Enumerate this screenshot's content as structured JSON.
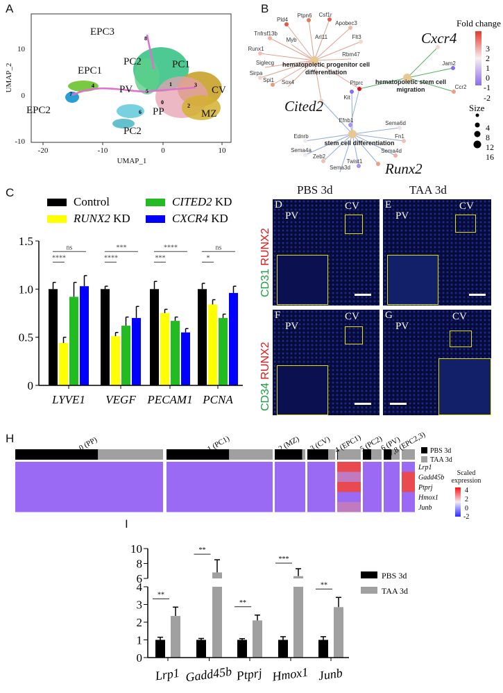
{
  "panels": {
    "A": "A",
    "B": "B",
    "C": "C",
    "D": "D",
    "E": "E",
    "F": "F",
    "G": "G",
    "H": "H",
    "I": "I"
  },
  "umap": {
    "xlabel": "UMAP_1",
    "ylabel": "UMAP_2",
    "xticks": [
      "-20",
      "-10",
      "0",
      "10"
    ],
    "yticks": [
      "10",
      "0",
      "-10"
    ],
    "cluster_labels": [
      "EPC3",
      "PC2",
      "PC1",
      "EPC1",
      "CV",
      "EPC2",
      "PV",
      "PP",
      "MZ",
      "PC2"
    ],
    "cluster_numbers": [
      "8",
      "5",
      "1",
      "3",
      "4",
      "7",
      "6",
      "0",
      "2"
    ]
  },
  "network": {
    "terms": [
      "hematopoietic progenitor cell differentiation",
      "hematopoietic stem cell migration",
      "stem cell differentiation"
    ],
    "genes": [
      "Pld4",
      "Ptpn6",
      "Csf1r",
      "Apobec3",
      "Arl11",
      "Flt3",
      "Rbm47",
      "Tnfrsf13b",
      "Myb",
      "Runx1",
      "Siglecg",
      "Sirpa",
      "Spi1",
      "Sox4",
      "Kit",
      "Ptprc",
      "Jam2",
      "Ccr2",
      "Efnb1",
      "Sema6d",
      "Ednrb",
      "Sema4a",
      "Zeb2",
      "Sema3d",
      "Twist1",
      "Fn1",
      "Sema4d"
    ],
    "highlight": [
      "Cited2",
      "Cxcr4",
      "Runx2"
    ],
    "legend_fold_title": "Fold change",
    "fold_ticks": [
      "3",
      "2",
      "1",
      "0",
      "-1",
      "-2"
    ],
    "legend_size_title": "Size",
    "size_ticks": [
      "4",
      "8",
      "12",
      "16"
    ],
    "colors": {
      "high": "#e8352a",
      "mid": "#f7f0f0",
      "low": "#8a6cf0"
    }
  },
  "micro": {
    "col_titles": [
      "PBS 3d",
      "TAA 3d"
    ],
    "row1_label": {
      "a": "CD31",
      "b": "RUNX2"
    },
    "row2_label": {
      "a": "CD34",
      "b": "RUNX2"
    },
    "pv": "PV",
    "cv": "CV"
  },
  "heatmap": {
    "clusters": [
      "0 (PP)",
      "1 (PC1)",
      "2 (MZ)",
      "3 (CV)",
      "4 (EPC1)",
      "5 (PC2)",
      "6 (PV)",
      "7,8 (EPC2,3)"
    ],
    "pbs_fraction": [
      0.56,
      0.59,
      0.9,
      0.75,
      0.03,
      0.45,
      0.48,
      0.0
    ],
    "genes": [
      "Lrp1",
      "Gadd45b",
      "Ptprj",
      "Hmox1",
      "Junb"
    ],
    "legend": [
      "PBS 3d",
      "TAA 3d"
    ],
    "scale_title": "Scaled expression",
    "scale_ticks": [
      "4",
      "2",
      "0",
      "-2"
    ]
  },
  "chart_data": [
    {
      "type": "bar",
      "panel": "C",
      "categories": [
        "LYVE1",
        "VEGF",
        "PECAM1",
        "PCNA"
      ],
      "series": [
        {
          "name": "Control",
          "color": "#000000",
          "values": [
            1.0,
            1.0,
            1.0,
            1.0
          ],
          "errors": [
            0.07,
            0.03,
            0.08,
            0.06
          ]
        },
        {
          "name": "RUNX2 KD",
          "color": "#ffff00",
          "values": [
            0.44,
            0.51,
            0.75,
            0.84
          ],
          "errors": [
            0.06,
            0.04,
            0.04,
            0.05
          ]
        },
        {
          "name": "CITED2 KD",
          "color": "#22bb22",
          "values": [
            0.92,
            0.62,
            0.67,
            0.7
          ],
          "errors": [
            0.15,
            0.09,
            0.04,
            0.04
          ]
        },
        {
          "name": "CXCR4 KD",
          "color": "#0000ff",
          "values": [
            1.03,
            0.7,
            0.55,
            0.96
          ],
          "errors": [
            0.11,
            0.12,
            0.04,
            0.07
          ]
        }
      ],
      "legend_italic": [
        "",
        "RUNX2",
        "CITED2",
        "CXCR4"
      ],
      "legend_suffix": [
        "Control",
        " KD",
        " KD",
        " KD"
      ],
      "significance": [
        {
          "category": "LYVE1",
          "upper": "ns",
          "lower": "****"
        },
        {
          "category": "VEGF",
          "upper": "***",
          "lower": "****"
        },
        {
          "category": "PECAM1",
          "upper": "****",
          "lower": "***"
        },
        {
          "category": "PCNA",
          "upper": "ns",
          "lower": "*"
        }
      ],
      "yticks": [
        "0",
        "0.5",
        "1.0",
        "1.5"
      ],
      "ylim": [
        0,
        1.5
      ]
    },
    {
      "type": "bar",
      "panel": "I",
      "categories": [
        "Lrp1",
        "Gadd45b",
        "Ptprj",
        "Hmox1",
        "Junb"
      ],
      "series": [
        {
          "name": "PBS 3d",
          "color": "#000000",
          "values": [
            1,
            1,
            1,
            1,
            1
          ],
          "errors": [
            0.15,
            0.08,
            0.07,
            0.18,
            0.18
          ]
        },
        {
          "name": "TAA 3d",
          "color": "#a0a0a0",
          "values": [
            2.35,
            6.8,
            2.1,
            6.3,
            2.85
          ],
          "errors": [
            0.5,
            1.7,
            0.3,
            1.0,
            0.55
          ]
        }
      ],
      "significance": [
        "**",
        "**",
        "**",
        "***",
        "**"
      ],
      "yticks_lower": [
        "0",
        "1",
        "2",
        "3",
        "4"
      ],
      "yticks_upper": [
        "6",
        "8",
        "10"
      ],
      "ylim": [
        0,
        10
      ],
      "axis_break": [
        4,
        6
      ]
    }
  ]
}
